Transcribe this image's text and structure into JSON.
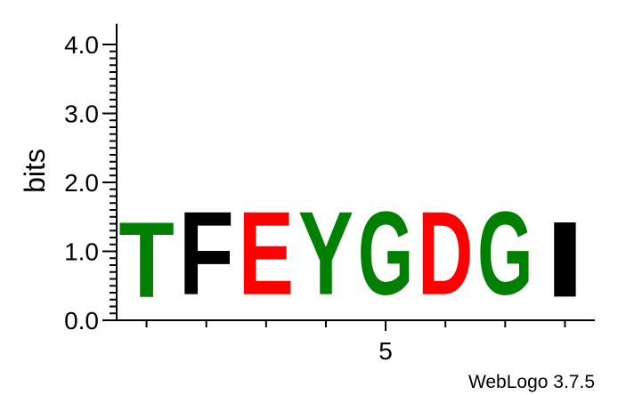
{
  "chart_data": {
    "type": "sequence-logo",
    "ylabel": "bits",
    "ylim": [
      0,
      4.3
    ],
    "y_ticks": [
      "0.0",
      "1.0",
      "2.0",
      "3.0",
      "4.0"
    ],
    "y_tick_values": [
      0,
      1,
      2,
      3,
      4
    ],
    "x_tick_labels": [
      {
        "position": 5,
        "label": "5"
      }
    ],
    "positions": [
      1,
      2,
      3,
      4,
      5,
      6,
      7,
      8
    ],
    "stacks": [
      {
        "position": 1,
        "letter": "T",
        "bits": 1.75,
        "color": "#008000"
      },
      {
        "position": 2,
        "letter": "F",
        "bits": 1.93,
        "color": "#000000"
      },
      {
        "position": 3,
        "letter": "E",
        "bits": 1.93,
        "color": "#ff0000"
      },
      {
        "position": 4,
        "letter": "Y",
        "bits": 1.93,
        "color": "#008000"
      },
      {
        "position": 5,
        "letter": "G",
        "bits": 1.93,
        "color": "#008000"
      },
      {
        "position": 6,
        "letter": "D",
        "bits": 1.93,
        "color": "#ff0000"
      },
      {
        "position": 7,
        "letter": "G",
        "bits": 1.93,
        "color": "#008000"
      },
      {
        "position": 8,
        "letter": "I",
        "bits": 1.75,
        "color": "#000000"
      }
    ]
  },
  "credit": "WebLogo 3.7.5"
}
